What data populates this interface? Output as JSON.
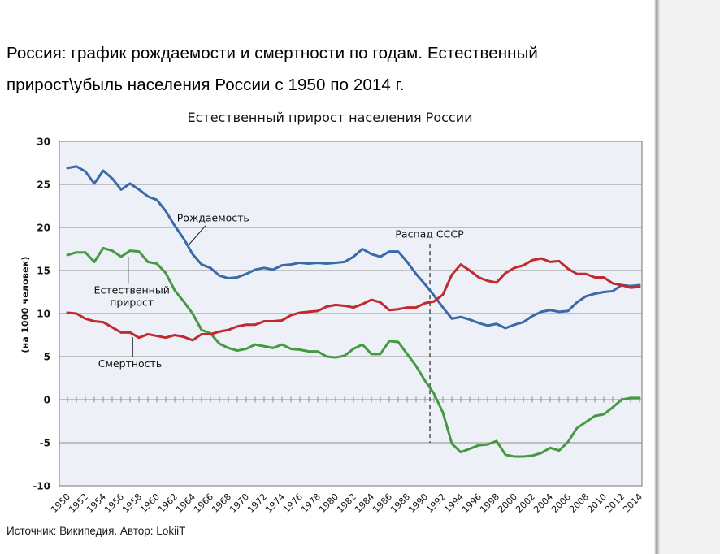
{
  "page": {
    "header_title": "Россия: график рождаемости и смертности по годам. Естественный прирост\\убыль населения России с 1950 по 2014 г.",
    "footer": "Источник: Википедия. Автор: LokiiT"
  },
  "chart_data": {
    "type": "line",
    "title": "Естественный прирост населения России",
    "ylabel": "(на 1000 человек)",
    "ylim": [
      -10,
      30
    ],
    "ytick_step": 5,
    "xtick_step": 2,
    "grid": true,
    "legend_position": "inline-annotations",
    "colors": {
      "plot_bg": "#edf1f7",
      "grid": "#a3a3a3",
      "border": "#8a8a8a",
      "axis_tick": "#8a8a8a",
      "event_line": "#4d4d4d",
      "leader_line": "#222222"
    },
    "years": [
      1950,
      1951,
      1952,
      1953,
      1954,
      1955,
      1956,
      1957,
      1958,
      1959,
      1960,
      1961,
      1962,
      1963,
      1964,
      1965,
      1966,
      1967,
      1968,
      1969,
      1970,
      1971,
      1972,
      1973,
      1974,
      1975,
      1976,
      1977,
      1978,
      1979,
      1980,
      1981,
      1982,
      1983,
      1984,
      1985,
      1986,
      1987,
      1988,
      1989,
      1990,
      1991,
      1992,
      1993,
      1994,
      1995,
      1996,
      1997,
      1998,
      1999,
      2000,
      2001,
      2002,
      2003,
      2004,
      2005,
      2006,
      2007,
      2008,
      2009,
      2010,
      2011,
      2012,
      2013,
      2014
    ],
    "series": [
      {
        "name": "Рождаемость",
        "color": "#3a6aa8",
        "values": [
          26.9,
          27.1,
          26.5,
          25.1,
          26.6,
          25.7,
          24.4,
          25.1,
          24.4,
          23.6,
          23.2,
          21.9,
          20.2,
          18.7,
          16.9,
          15.7,
          15.3,
          14.4,
          14.1,
          14.2,
          14.6,
          15.1,
          15.3,
          15.1,
          15.6,
          15.7,
          15.9,
          15.8,
          15.9,
          15.8,
          15.9,
          16.0,
          16.6,
          17.5,
          16.9,
          16.6,
          17.2,
          17.2,
          16.0,
          14.6,
          13.4,
          12.1,
          10.7,
          9.4,
          9.6,
          9.3,
          8.9,
          8.6,
          8.8,
          8.3,
          8.7,
          9.0,
          9.7,
          10.2,
          10.4,
          10.2,
          10.3,
          11.3,
          12.0,
          12.3,
          12.5,
          12.6,
          13.3,
          13.2,
          13.3
        ]
      },
      {
        "name": "Естественный прирост",
        "color": "#469942",
        "values": [
          16.8,
          17.1,
          17.1,
          16.0,
          17.6,
          17.3,
          16.6,
          17.3,
          17.2,
          16.0,
          15.8,
          14.7,
          12.7,
          11.4,
          10.0,
          8.1,
          7.7,
          6.5,
          6.0,
          5.7,
          5.9,
          6.4,
          6.2,
          6.0,
          6.4,
          5.9,
          5.8,
          5.6,
          5.6,
          5.0,
          4.9,
          5.1,
          5.9,
          6.4,
          5.3,
          5.3,
          6.8,
          6.7,
          5.3,
          3.9,
          2.2,
          0.7,
          -1.5,
          -5.1,
          -6.1,
          -5.7,
          -5.3,
          -5.2,
          -4.8,
          -6.4,
          -6.6,
          -6.6,
          -6.5,
          -6.2,
          -5.6,
          -5.9,
          -4.9,
          -3.3,
          -2.6,
          -1.9,
          -1.7,
          -0.9,
          0.0,
          0.2,
          0.2
        ]
      },
      {
        "name": "Смертность",
        "color": "#c02a2e",
        "values": [
          10.1,
          10.0,
          9.4,
          9.1,
          9.0,
          8.4,
          7.8,
          7.8,
          7.2,
          7.6,
          7.4,
          7.2,
          7.5,
          7.3,
          6.9,
          7.6,
          7.6,
          7.9,
          8.1,
          8.5,
          8.7,
          8.7,
          9.1,
          9.1,
          9.2,
          9.8,
          10.1,
          10.2,
          10.3,
          10.8,
          11.0,
          10.9,
          10.7,
          11.1,
          11.6,
          11.3,
          10.4,
          10.5,
          10.7,
          10.7,
          11.2,
          11.4,
          12.2,
          14.5,
          15.7,
          15.0,
          14.2,
          13.8,
          13.6,
          14.7,
          15.3,
          15.6,
          16.2,
          16.4,
          16.0,
          16.1,
          15.2,
          14.6,
          14.6,
          14.2,
          14.2,
          13.5,
          13.3,
          13.0,
          13.1
        ]
      }
    ],
    "annotations": [
      {
        "id": "birth-rate-label",
        "text": "Рождаемость",
        "x": 1966.3,
        "y": 21.1,
        "leader": [
          [
            1965.45,
            20.2
          ],
          [
            1963.5,
            17.9
          ]
        ]
      },
      {
        "id": "natural-growth-label",
        "text": "Естественный\nприрост",
        "x": 1957.2,
        "y": 12.0,
        "leader": [
          [
            1956.8,
            16.6
          ],
          [
            1956.8,
            13.45
          ]
        ]
      },
      {
        "id": "death-rate-label",
        "text": "Смертность",
        "x": 1957.0,
        "y": 4.15,
        "leader": [
          [
            1957.3,
            7.25
          ],
          [
            1957.3,
            4.95
          ]
        ]
      },
      {
        "id": "ussr-collapse-label",
        "text": "Распад СССР",
        "x": 1990.5,
        "y": 19.2,
        "vline": {
          "x": 1990.55,
          "v_top": 18.1,
          "v_bottom": -5.0,
          "dash": "5,4"
        }
      }
    ]
  }
}
